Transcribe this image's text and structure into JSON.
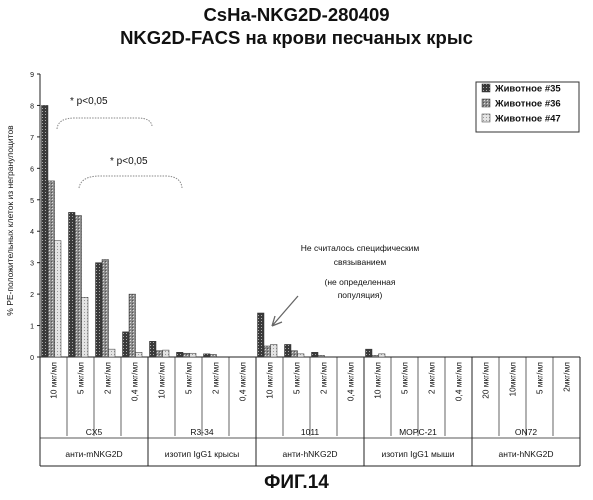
{
  "figure_label": "ФИГ.14",
  "chart_data": {
    "type": "bar",
    "title": "CsHa-NKG2D-280409",
    "subtitle": "NKG2D-FACS на крови песчаных крыс",
    "ylabel": "% PE-положительных клеток из негранулоцитов",
    "ylim": [
      0,
      9
    ],
    "yticks": [
      0,
      1,
      2,
      3,
      4,
      5,
      6,
      7,
      8,
      9
    ],
    "legend_position": "top-right",
    "grid": false,
    "categories": [
      "10 мкг/мл",
      "5 мкг/мл",
      "2 мкг/мл",
      "0,4 мкг/мл",
      "10 мкг/мл",
      "5 мкг/мл",
      "2 мкг/мл",
      "0,4 мкг/мл",
      "10 мкг/мл",
      "5 мкг/мл",
      "2 мкг/мл",
      "0,4 мкг/мл",
      "10 мкг/мл",
      "5 мкг/мл",
      "2 мкг/мл",
      "0,4 мкг/мл",
      "20 мкг/мл",
      "10мкг/мл",
      "5 мкг/мл",
      "2мкг/мл"
    ],
    "groups": [
      {
        "name": "CX5",
        "sub": "анти-mNKG2D",
        "size": 4
      },
      {
        "name": "R3-34",
        "sub": "изотип IgG1 крысы",
        "size": 4
      },
      {
        "name": "1011",
        "sub": "анти-hNKG2D",
        "size": 4
      },
      {
        "name": "MOPC-21",
        "sub": "изотип IgG1 мыши",
        "size": 4
      },
      {
        "name": "ON72",
        "sub": "анти-hNKG2D",
        "size": 4
      }
    ],
    "series": [
      {
        "name": "Животное #35",
        "color": "#3a3a3a",
        "values": [
          8.0,
          4.6,
          3.0,
          0.8,
          0.5,
          0.15,
          0.1,
          0,
          1.4,
          0.4,
          0.15,
          0,
          0.25,
          0,
          0,
          0,
          0,
          0,
          0,
          0
        ]
      },
      {
        "name": "Животное #36",
        "color": "#8c8c8c",
        "values": [
          5.6,
          4.5,
          3.1,
          2.0,
          0.2,
          0.12,
          0.08,
          0,
          0.35,
          0.2,
          0.05,
          0,
          0.05,
          0,
          0,
          0,
          0,
          0,
          0,
          0
        ]
      },
      {
        "name": "Животное #47",
        "color": "#e4e4e4",
        "values": [
          3.7,
          1.9,
          0.25,
          0.15,
          0.22,
          0.12,
          0,
          0,
          0.4,
          0.1,
          0,
          0,
          0.1,
          0,
          0,
          0,
          0,
          0,
          0,
          0
        ]
      }
    ],
    "annotations": [
      {
        "text": "* p<0,05",
        "from_category": 0,
        "to_category": 4
      },
      {
        "text": "* p<0,05",
        "from_category": 1,
        "to_category": 5
      },
      {
        "text": "Не считалось специфическим связыванием",
        "target_category": 8
      },
      {
        "text": "(не определенная популяция)",
        "target_category": 8
      }
    ]
  }
}
